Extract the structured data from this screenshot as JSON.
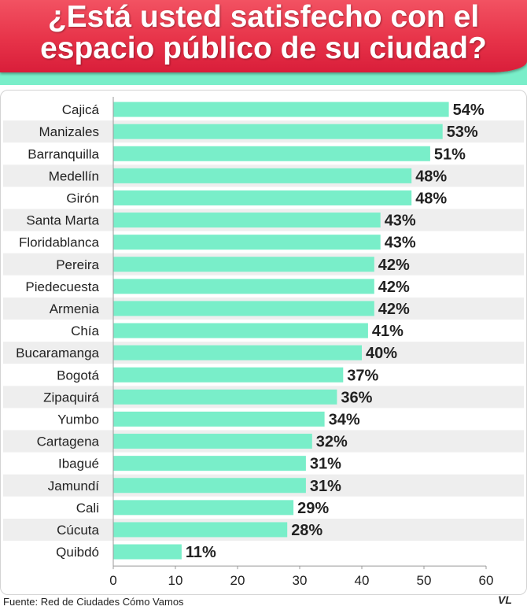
{
  "title": {
    "line1": "¿Está usted satisfecho con el",
    "line2": "espacio público de su ciudad?"
  },
  "source": "Fuente: Red de Ciudades Cómo Vamos",
  "logo_text": "VL",
  "colors": {
    "bar": "#79eec9",
    "banner": "#e73349",
    "stripe": "#eeeeee",
    "text": "#222222"
  },
  "chart_data": {
    "type": "bar",
    "orientation": "horizontal",
    "categories": [
      "Cajicá",
      "Manizales",
      "Barranquilla",
      "Medellín",
      "Girón",
      "Santa Marta",
      "Floridablanca",
      "Pereira",
      "Piedecuesta",
      "Armenia",
      "Chía",
      "Bucaramanga",
      "Bogotá",
      "Zipaquirá",
      "Yumbo",
      "Cartagena",
      "Ibagué",
      "Jamundí",
      "Cali",
      "Cúcuta",
      "Quibdó"
    ],
    "values": [
      54,
      53,
      51,
      48,
      48,
      43,
      43,
      42,
      42,
      42,
      41,
      40,
      37,
      36,
      34,
      32,
      31,
      31,
      29,
      28,
      11
    ],
    "value_labels": [
      "54%",
      "53%",
      "51%",
      "48%",
      "48%",
      "43%",
      "43%",
      "42%",
      "42%",
      "42%",
      "41%",
      "40%",
      "37%",
      "36%",
      "34%",
      "32%",
      "31%",
      "31%",
      "29%",
      "28%",
      "11%"
    ],
    "xlim": [
      0,
      60
    ],
    "xticks": [
      0,
      10,
      20,
      30,
      40,
      50,
      60
    ],
    "title": "¿Está usted satisfecho con el espacio público de su ciudad?",
    "xlabel": "",
    "ylabel": ""
  }
}
